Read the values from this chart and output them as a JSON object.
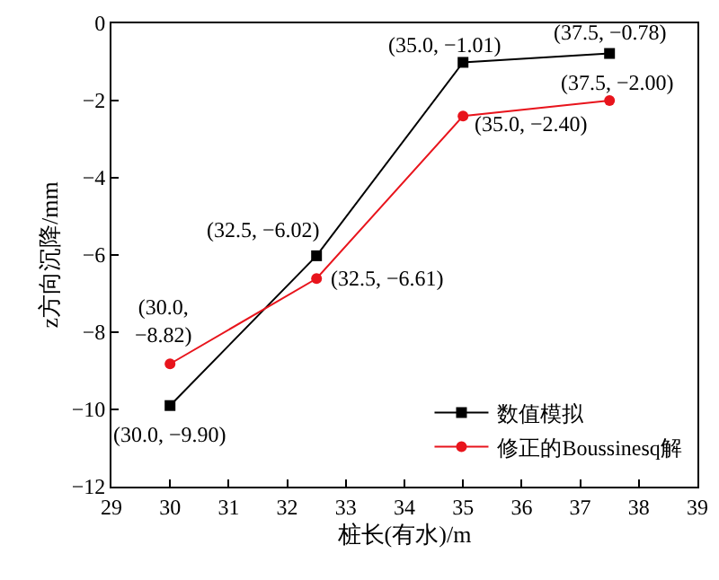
{
  "chart_data": {
    "type": "line",
    "xlabel": "桩长(有水)/m",
    "ylabel": "z方向沉降/mm",
    "x": [
      30,
      32.5,
      35,
      37.5
    ],
    "series": [
      {
        "name": "数值模拟",
        "color": "#000000",
        "marker": "square",
        "values": [
          -9.9,
          -6.02,
          -1.01,
          -0.78
        ]
      },
      {
        "name": "修正的Boussinesq解",
        "color": "#e8141c",
        "marker": "circle",
        "values": [
          -8.82,
          -6.61,
          -2.4,
          -2.0
        ]
      }
    ],
    "xlim": [
      29,
      39
    ],
    "xticks": [
      29,
      30,
      31,
      32,
      33,
      34,
      35,
      36,
      37,
      38,
      39
    ],
    "ylim": [
      -12,
      0
    ],
    "yticks": [
      -12,
      -10,
      -8,
      -6,
      -4,
      -2,
      0
    ],
    "legend": "bottom right",
    "line_style": "solid",
    "annotations": [
      {
        "text": "(30.0, −9.90)",
        "x": 30,
        "y": -9.9
      },
      {
        "text": "(32.5, −6.02)",
        "x": 32.5,
        "y": -6.02
      },
      {
        "text": "(35.0, −1.01)",
        "x": 35,
        "y": -1.01
      },
      {
        "text": "(37.5, −0.78)",
        "x": 37.5,
        "y": -0.78
      },
      {
        "text": "(30.0,\n−8.82)",
        "x": 30,
        "y": -8.82
      },
      {
        "text": "(32.5, −6.61)",
        "x": 32.5,
        "y": -6.61
      },
      {
        "text": "(35.0, −2.40)",
        "x": 35,
        "y": -2.4
      },
      {
        "text": "(37.5, −2.00)",
        "x": 37.5,
        "y": -2.0
      }
    ]
  }
}
